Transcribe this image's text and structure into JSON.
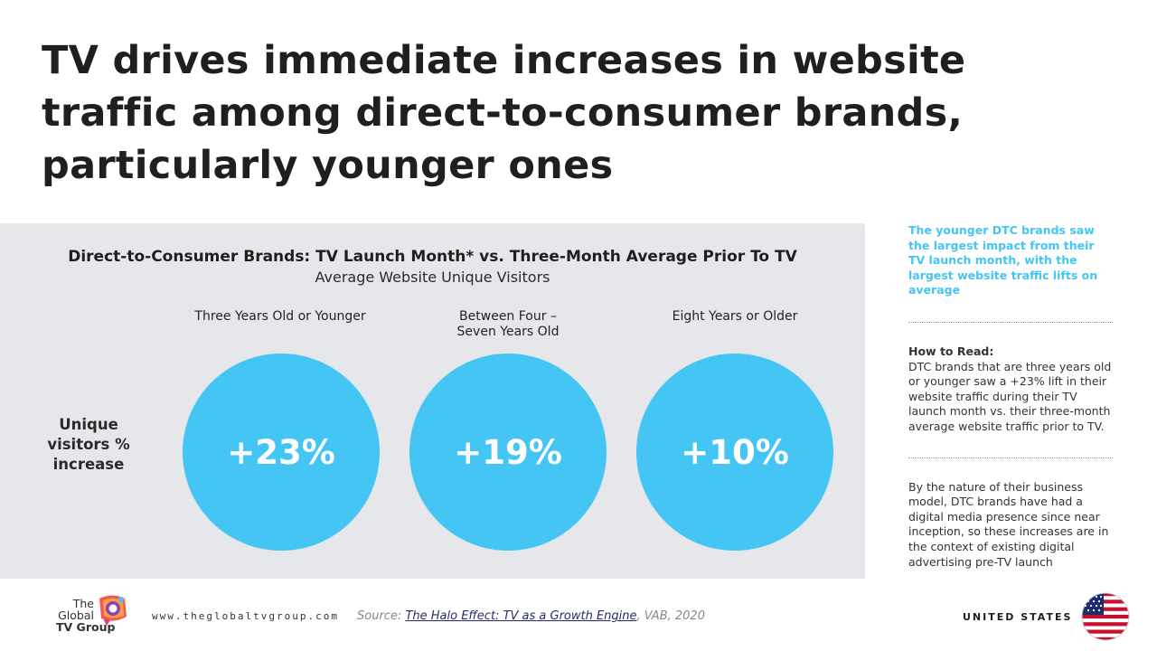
{
  "title": "TV drives immediate increases in website traffic among direct-to-consumer brands, particularly younger ones",
  "panel": {
    "chart_title": "Direct-to-Consumer Brands: TV Launch Month* vs. Three-Month Average Prior To TV",
    "chart_subtitle": "Average Website Unique Visitors",
    "row_label": "Unique visitors % increase",
    "columns": [
      {
        "label_line1": "Three Years Old or Younger",
        "label_line2": "",
        "value": "+23%"
      },
      {
        "label_line1": "Between Four –",
        "label_line2": "Seven Years Old",
        "value": "+19%"
      },
      {
        "label_line1": "Eight Years or Older",
        "label_line2": "",
        "value": "+10%"
      }
    ]
  },
  "sidebar": {
    "highlight": "The younger DTC brands saw the largest impact from their TV launch month, with the largest website traffic lifts on average",
    "how_to_read_title": "How to Read:",
    "how_to_read_body": "DTC brands that are three years old or younger saw a +23% lift in their website traffic during their TV launch month vs. their three-month average website traffic prior to TV.",
    "note": "By the nature of their business model, DTC brands have had a digital media presence since near inception, so these increases are in the context of existing digital advertising pre-TV launch"
  },
  "footer": {
    "logo_line1": "The",
    "logo_line2": "Global",
    "logo_line3": "TV Group",
    "url": "www.theglobaltvgroup.com",
    "source_prefix": "Source: ",
    "source_link": "The Halo Effect: TV as a Growth Engine",
    "source_suffix": ", VAB, 2020",
    "country": "UNITED STATES"
  },
  "colors": {
    "accent": "#44c5f4",
    "panel_bg": "#e6e7ea",
    "title_text": "#1f1f1f"
  },
  "icons": {
    "logo": "global-tv-group-logo",
    "flag": "us-flag-icon"
  }
}
